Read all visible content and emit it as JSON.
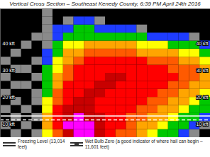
{
  "chart_data": {
    "type": "heatmap",
    "title": "Vertical Cross Section – Southeast Kenedy County, 6:39 PM April 24th 2016",
    "xlim": [
      0,
      20
    ],
    "ylim": [
      5,
      53
    ],
    "yticks": [
      {
        "value": 10,
        "label": "10 kft"
      },
      {
        "value": 20,
        "label": "20 kft"
      },
      {
        "value": 30,
        "label": "30 kft"
      },
      {
        "value": 40,
        "label": "40 kft"
      }
    ],
    "tick_labels": "y",
    "x_bins": [
      0,
      1,
      2,
      3,
      4,
      5,
      6,
      7,
      8,
      9,
      10,
      11,
      12,
      13,
      14,
      15,
      16,
      17,
      18,
      19,
      20
    ],
    "y_bins": [
      5,
      8,
      11,
      14,
      17,
      20,
      23,
      26,
      29,
      32,
      35,
      38,
      41,
      44,
      47,
      50,
      53
    ],
    "z": [
      [
        null,
        15,
        null,
        15,
        40,
        50,
        60,
        65,
        65,
        60,
        55,
        50,
        50,
        45,
        40,
        35,
        30,
        20,
        15,
        null
      ],
      [
        15,
        null,
        15,
        null,
        45,
        55,
        65,
        65,
        65,
        60,
        55,
        55,
        50,
        45,
        45,
        40,
        35,
        30,
        20,
        15
      ],
      [
        null,
        15,
        null,
        15,
        45,
        55,
        60,
        65,
        60,
        60,
        55,
        55,
        50,
        50,
        45,
        45,
        40,
        35,
        30,
        20
      ],
      [
        15,
        null,
        15,
        null,
        40,
        55,
        60,
        60,
        60,
        55,
        55,
        55,
        55,
        50,
        50,
        45,
        45,
        40,
        35,
        30
      ],
      [
        null,
        15,
        null,
        15,
        40,
        50,
        55,
        60,
        60,
        55,
        55,
        55,
        55,
        55,
        50,
        50,
        45,
        45,
        40,
        35
      ],
      [
        15,
        null,
        null,
        15,
        35,
        50,
        55,
        55,
        60,
        60,
        55,
        55,
        55,
        55,
        55,
        50,
        50,
        45,
        45,
        40
      ],
      [
        null,
        15,
        15,
        null,
        35,
        45,
        55,
        55,
        55,
        60,
        60,
        55,
        55,
        55,
        55,
        55,
        50,
        50,
        45,
        45
      ],
      [
        15,
        null,
        null,
        15,
        30,
        45,
        50,
        55,
        55,
        55,
        60,
        60,
        55,
        55,
        55,
        55,
        55,
        50,
        50,
        45
      ],
      [
        null,
        15,
        15,
        null,
        30,
        40,
        50,
        55,
        55,
        55,
        55,
        55,
        55,
        55,
        55,
        55,
        50,
        50,
        50,
        45
      ],
      [
        15,
        null,
        null,
        15,
        25,
        40,
        45,
        50,
        55,
        55,
        55,
        55,
        55,
        55,
        50,
        50,
        50,
        45,
        45,
        40
      ],
      [
        null,
        15,
        null,
        null,
        20,
        35,
        45,
        45,
        50,
        50,
        50,
        50,
        50,
        45,
        45,
        45,
        45,
        40,
        40,
        35
      ],
      [
        null,
        null,
        15,
        null,
        15,
        30,
        40,
        40,
        45,
        45,
        45,
        45,
        45,
        40,
        40,
        40,
        35,
        35,
        30,
        25
      ],
      [
        null,
        null,
        null,
        15,
        15,
        25,
        30,
        35,
        35,
        35,
        30,
        35,
        30,
        30,
        25,
        25,
        20,
        20,
        15,
        null
      ],
      [
        null,
        null,
        null,
        null,
        15,
        20,
        25,
        30,
        30,
        25,
        25,
        20,
        20,
        15,
        null,
        null,
        null,
        null,
        null,
        null
      ],
      [
        null,
        null,
        null,
        null,
        15,
        null,
        15,
        20,
        20,
        15,
        null,
        null,
        null,
        null,
        null,
        null,
        null,
        null,
        null,
        null
      ],
      [
        null,
        null,
        null,
        null,
        15,
        null,
        null,
        null,
        null,
        null,
        null,
        null,
        null,
        null,
        null,
        null,
        null,
        null,
        null,
        null
      ]
    ],
    "color_scale": {
      "domain": [
        10,
        20,
        30,
        40,
        45,
        50,
        55,
        60,
        65
      ],
      "range": [
        "#000000",
        "#8a8a8a",
        "#1e3cff",
        "#00c800",
        "#ffff00",
        "#ffa500",
        "#ff5a00",
        "#ff0000",
        "#c80000",
        "#ff00ff"
      ]
    },
    "lines": [
      {
        "label": "Freezing Level (13,014 feet)",
        "value": 13.014,
        "color": "#ffffff",
        "line_style": "solid"
      },
      {
        "label": "Wet Bulb Zero (a good indicator of where hail can begin – 11,601 feet)",
        "value": 11.601,
        "color": "#ffffff",
        "line_style": "dashed"
      }
    ]
  }
}
